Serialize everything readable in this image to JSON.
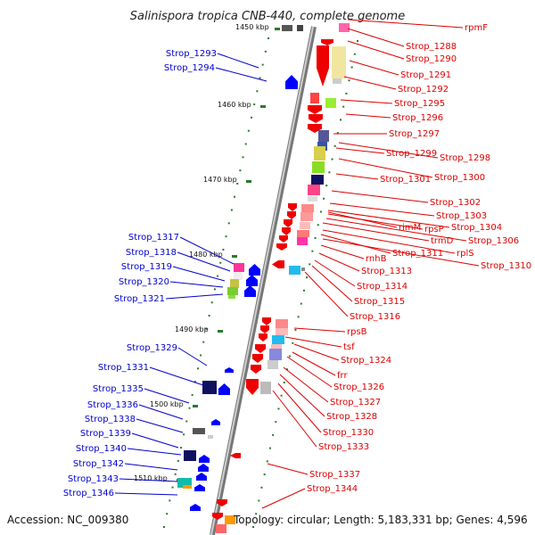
{
  "title": "Salinispora tropica CNB-440, complete genome",
  "accession": "Accession: NC_009380",
  "topology": "Topology: circular; Length: 5,183,331 bp; Genes: 4,596",
  "colors": {
    "left_label": "#0000cc",
    "right_label": "#dd0000",
    "backbone": "#888888",
    "tick": "#2a7a2a"
  },
  "kbp_ticks": [
    {
      "label": "1450 kbp",
      "row": 0
    },
    {
      "label": "1460 kbp",
      "row": 1
    },
    {
      "label": "1470 kbp",
      "row": 2
    },
    {
      "label": "1480 kbp",
      "row": 3
    },
    {
      "label": "1490 kbp",
      "row": 4
    },
    {
      "label": "1500 kbp",
      "row": 5
    },
    {
      "label": "1510 kbp",
      "row": 6
    }
  ],
  "left_labels": [
    "Strop_1293",
    "Strop_1294",
    "Strop_1317",
    "Strop_1318",
    "Strop_1319",
    "Strop_1320",
    "Strop_1321",
    "Strop_1329",
    "Strop_1331",
    "Strop_1335",
    "Strop_1336",
    "Strop_1338",
    "Strop_1339",
    "Strop_1340",
    "Strop_1342",
    "Strop_1343",
    "Strop_1346"
  ],
  "right_labels": [
    "rpmF",
    "Strop_1288",
    "Strop_1290",
    "Strop_1291",
    "Strop_1292",
    "Strop_1295",
    "Strop_1296",
    "Strop_1297",
    "Strop_1298",
    "Strop_1299",
    "Strop_1300",
    "Strop_1301",
    "Strop_1302",
    "Strop_1303",
    "Strop_1304",
    "rpsP",
    "rimM",
    "Strop_1306",
    "trmD",
    "rplS",
    "Strop_1310",
    "Strop_1311",
    "rnhB",
    "Strop_1313",
    "Strop_1314",
    "Strop_1315",
    "Strop_1316",
    "rpsB",
    "tsf",
    "Strop_1324",
    "frr",
    "Strop_1326",
    "Strop_1327",
    "Strop_1328",
    "Strop_1330",
    "Strop_1333",
    "Strop_1337",
    "Strop_1344"
  ]
}
